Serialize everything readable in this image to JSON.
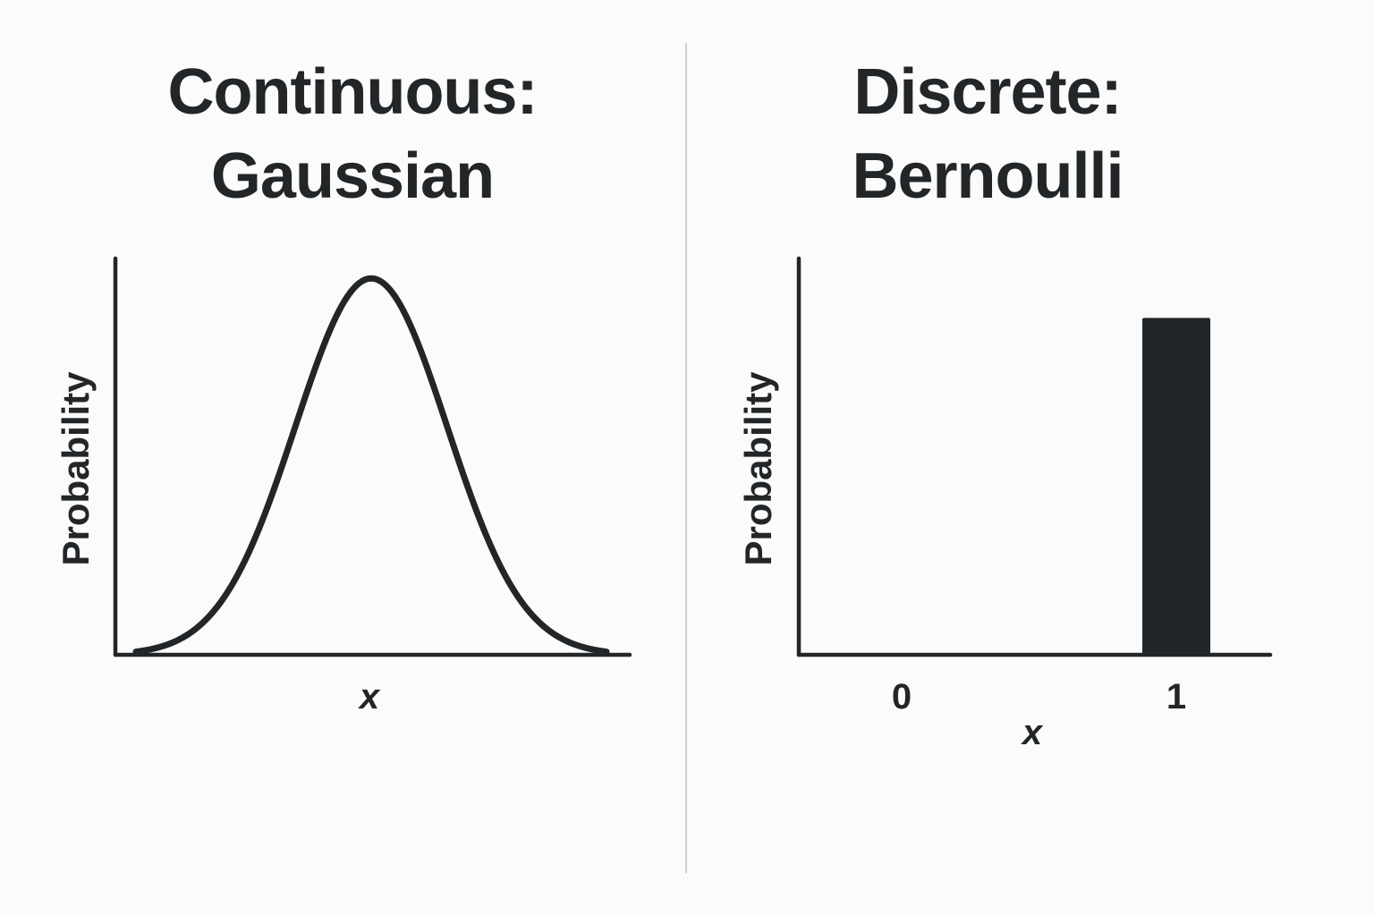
{
  "chart_data": [
    {
      "type": "line",
      "title_lines": [
        "Continuous:",
        "Gaussian"
      ],
      "xlabel": "x",
      "ylabel": "Probability",
      "distribution": "gaussian",
      "mean": 0,
      "std": 1,
      "x_range": [
        -3.1,
        3.1
      ],
      "ylim": [
        0,
        0.42
      ],
      "grid": false,
      "color": "#222628"
    },
    {
      "type": "bar",
      "title_lines": [
        "Discrete:",
        "Bernoulli"
      ],
      "xlabel": "x",
      "ylabel": "Probability",
      "categories": [
        "0",
        "1"
      ],
      "values": [
        0,
        0.85
      ],
      "ylim": [
        0,
        1
      ],
      "grid": false,
      "color": "#222628"
    }
  ],
  "colors": {
    "ink": "#222628",
    "background": "#fbfbfb",
    "divider": "#cfcfcf"
  }
}
